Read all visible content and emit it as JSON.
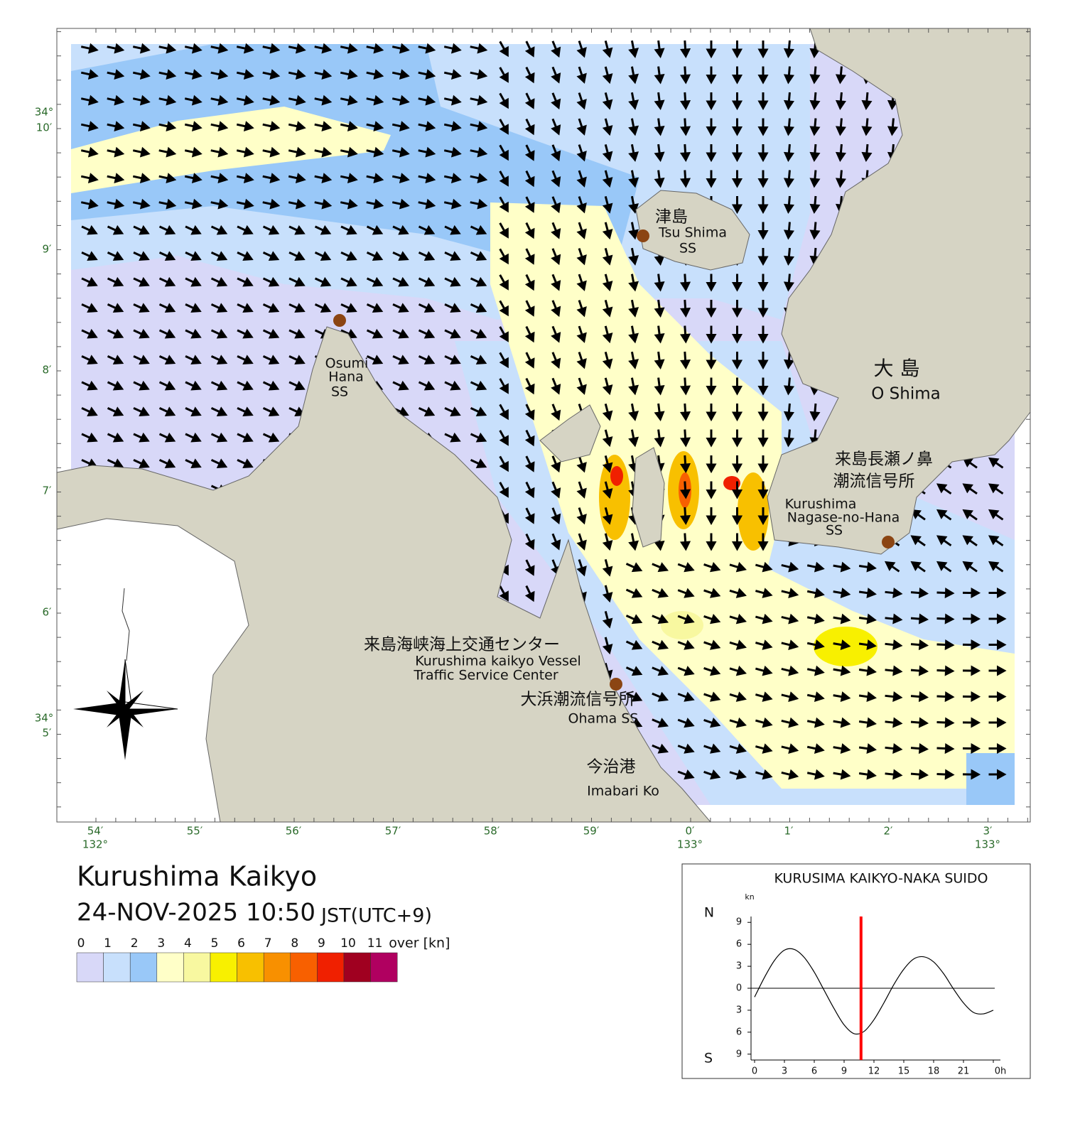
{
  "header": {
    "title": "Kurushima Kaikyo",
    "datetime": "24-NOV-2025 10:50",
    "timezone": "JST(UTC+9)"
  },
  "map": {
    "lon_labels": [
      "54′",
      "55′",
      "56′",
      "57′",
      "58′",
      "59′",
      "0′",
      "1′",
      "2′",
      "3′"
    ],
    "lon_degree_labels": [
      "132°",
      "133°",
      "133°"
    ],
    "lat_labels": [
      "34°",
      "10′",
      "9′",
      "8′",
      "7′",
      "6′",
      "34°",
      "5′"
    ],
    "places": [
      {
        "lines": [
          "津島",
          "Tsu Shima",
          "SS"
        ]
      },
      {
        "lines": [
          "Osumi",
          "Hana",
          "SS"
        ]
      },
      {
        "lines": [
          "大 島",
          "O Shima"
        ]
      },
      {
        "lines": [
          "来島長瀬ノ鼻",
          "潮流信号所",
          "Kurushima",
          "Nagase-no-Hana",
          "SS"
        ]
      },
      {
        "lines": [
          "来島海峡海上交通センター",
          "Kurushima kaikyo Vessel",
          "Traffic Service Center"
        ]
      },
      {
        "lines": [
          "大浜潮流信号所",
          "Ohama SS"
        ]
      },
      {
        "lines": [
          "今治港",
          "Imabari Ko"
        ]
      }
    ]
  },
  "legend": {
    "labels": [
      "0",
      "1",
      "2",
      "3",
      "4",
      "5",
      "6",
      "7",
      "8",
      "9",
      "10",
      "11"
    ],
    "unit": "over [kn]",
    "colors": [
      "#d8d8f8",
      "#c8e0fc",
      "#99c8f8",
      "#ffffc8",
      "#f8f8a0",
      "#f8f000",
      "#f8c000",
      "#f89000",
      "#f86000",
      "#f02000",
      "#a00020",
      "#b00060"
    ]
  },
  "chart_data": {
    "type": "line",
    "title": "KURUSIMA KAIKYO-NAKA SUIDO",
    "y_unit": "kn",
    "north_label": "N",
    "south_label": "S",
    "x": [
      0,
      1,
      2,
      3,
      4,
      5,
      6,
      7,
      8,
      9,
      10,
      11,
      12,
      13,
      14,
      15,
      16,
      17,
      18,
      19,
      20,
      21,
      22,
      23,
      24
    ],
    "values": [
      -1.2,
      1.5,
      3.8,
      5.2,
      5.3,
      4.2,
      2.2,
      -0.3,
      -2.8,
      -5,
      -6.2,
      -5.9,
      -4.3,
      -2,
      0.5,
      2.6,
      4,
      4.3,
      3.6,
      2,
      -0.1,
      -2,
      -3.3,
      -3.5,
      -3
    ],
    "color": "#000000",
    "current_time": 10.7,
    "current_time_color": "#ff0000",
    "xlim": [
      0,
      24
    ],
    "xticks": [
      0,
      3,
      6,
      9,
      12,
      15,
      18,
      21,
      {
        "value": 24,
        "label": "0h"
      }
    ],
    "ylim": [
      -9.8,
      9.8
    ],
    "yticks": [
      9,
      6,
      3,
      0,
      {
        "value": -3,
        "label": "3"
      },
      {
        "value": -6,
        "label": "6"
      },
      {
        "value": -9,
        "label": "9"
      }
    ]
  }
}
